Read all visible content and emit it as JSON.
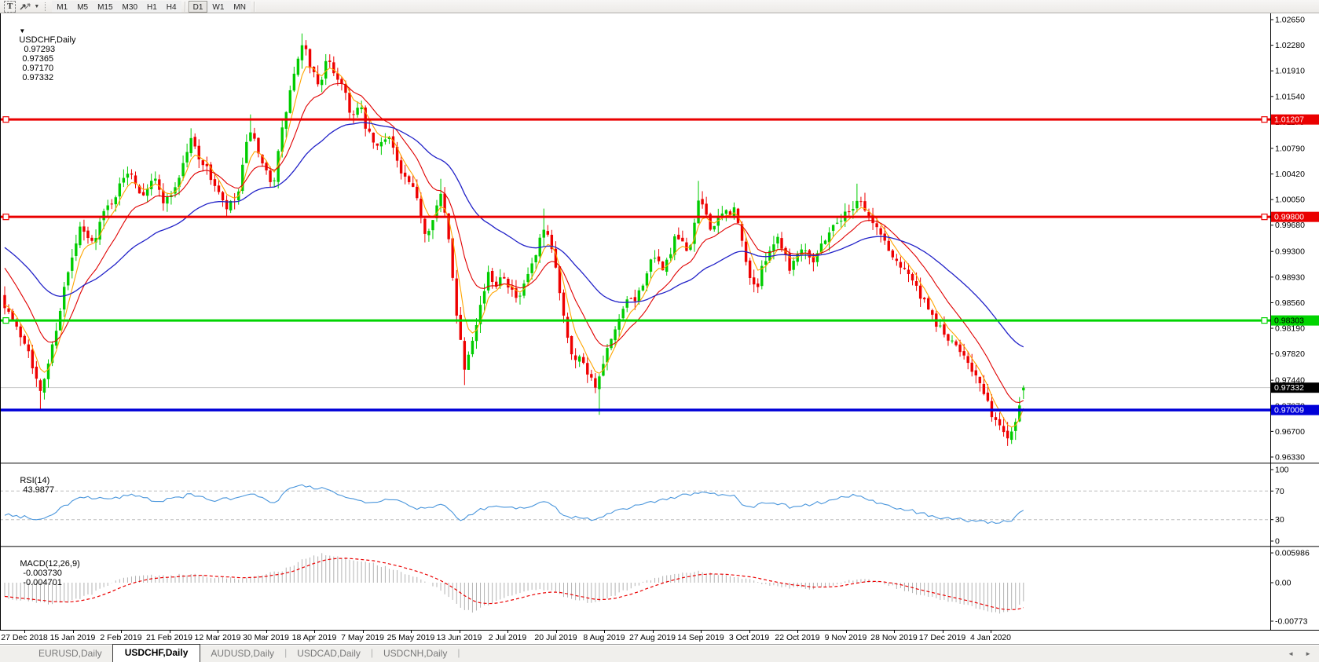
{
  "toolbar": {
    "text_tool_glyph": "T",
    "dropdown_caret": "▼",
    "timeframes": [
      {
        "label": "M1",
        "active": false
      },
      {
        "label": "M5",
        "active": false
      },
      {
        "label": "M15",
        "active": false
      },
      {
        "label": "M30",
        "active": false
      },
      {
        "label": "H1",
        "active": false
      },
      {
        "label": "H4",
        "active": false
      },
      {
        "label": "D1",
        "active": true
      },
      {
        "label": "W1",
        "active": false
      },
      {
        "label": "MN",
        "active": false
      }
    ]
  },
  "chart": {
    "title": {
      "collapse_arrow": "▼",
      "symbol": "USDCHF,Daily",
      "open": "0.97293",
      "high": "0.97365",
      "low": "0.97170",
      "close": "0.97332"
    },
    "y_axis": {
      "ticks": [
        "1.02650",
        "1.02280",
        "1.01910",
        "1.01540",
        "1.01170",
        "1.00790",
        "1.00420",
        "1.00050",
        "0.99680",
        "0.99300",
        "0.98930",
        "0.98560",
        "0.98190",
        "0.97820",
        "0.97440",
        "0.97070",
        "0.96700",
        "0.96330"
      ]
    },
    "x_axis": {
      "dates": [
        "27 Dec 2018",
        "15 Jan 2019",
        "2 Feb 2019",
        "21 Feb 2019",
        "12 Mar 2019",
        "30 Mar 2019",
        "18 Apr 2019",
        "7 May 2019",
        "25 May 2019",
        "13 Jun 2019",
        "2 Jul 2019",
        "20 Jul 2019",
        "8 Aug 2019",
        "27 Aug 2019",
        "14 Sep 2019",
        "3 Oct 2019",
        "22 Oct 2019",
        "9 Nov 2019",
        "28 Nov 2019",
        "17 Dec 2019",
        "4 Jan 2020"
      ]
    },
    "hlines": [
      {
        "label": "1.01207",
        "price": 1.01207,
        "color": "#ea0000",
        "text_color": "#ffffff",
        "thickness": 3,
        "handles": true
      },
      {
        "label": "0.99800",
        "price": 0.998,
        "color": "#ea0000",
        "text_color": "#ffffff",
        "thickness": 3,
        "handles": true
      },
      {
        "label": "0.98303",
        "price": 0.98303,
        "color": "#00d400",
        "text_color": "#000000",
        "thickness": 3,
        "handles": true
      },
      {
        "label": "0.97009",
        "price": 0.97009,
        "color": "#0000d8",
        "text_color": "#ffffff",
        "thickness": 3.5,
        "handles": false
      }
    ],
    "current_price": {
      "label": "0.97332",
      "price": 0.97332,
      "line_color": "#c6c6c6",
      "tag_bg": "#000000",
      "tag_text": "#ffffff"
    },
    "colors": {
      "up": "#00cc00",
      "down": "#ee0000",
      "ma_fast": "#ffa500",
      "ma_mid": "#e00000",
      "ma_slow": "#2222c8",
      "axis_text": "#000000"
    }
  },
  "rsi": {
    "name": "RSI(14)",
    "value": "43.9877",
    "scale": [
      "100",
      "70",
      "30",
      "0"
    ],
    "upper": 70,
    "lower": 30,
    "line_color": "#4a96dc",
    "level_color": "#bdbdbd"
  },
  "macd": {
    "name": "MACD(12,26,9)",
    "macd_value": "-0.003730",
    "signal_value": "-0.004701",
    "scale": [
      "0.005986",
      "0.00",
      "-0.00773"
    ],
    "hist_color": "#b2b2b2",
    "signal_color": "#ea0000"
  },
  "tabs": {
    "separator": "|",
    "scroll_left": "◄",
    "scroll_right": "►",
    "items": [
      {
        "label": "EURUSD,Daily",
        "active": false
      },
      {
        "label": "USDCHF,Daily",
        "active": true
      },
      {
        "label": "AUDUSD,Daily",
        "active": false
      },
      {
        "label": "USDCAD,Daily",
        "active": false
      },
      {
        "label": "USDCNH,Daily",
        "active": false
      }
    ]
  },
  "chart_data": {
    "type": "candlestick",
    "symbol": "USDCHF",
    "timeframe": "Daily",
    "bars": 258,
    "last_bar": {
      "open": 0.97293,
      "high": 0.97365,
      "low": 0.9717,
      "close": 0.97332
    },
    "key_levels": [
      1.01207,
      0.998,
      0.98303,
      0.97009
    ],
    "rsi_last": 43.9877,
    "macd_last": -0.00373,
    "signal_last": -0.004701,
    "price_path": [
      [
        6,
        0.9855
      ],
      [
        21,
        0.9818
      ],
      [
        36,
        0.9792
      ],
      [
        51,
        0.9722
      ],
      [
        67,
        0.9795
      ],
      [
        82,
        0.9878
      ],
      [
        102,
        0.9962
      ],
      [
        117,
        0.9942
      ],
      [
        132,
        0.9985
      ],
      [
        150,
        1.0018
      ],
      [
        165,
        1.0052
      ],
      [
        180,
        1.0012
      ],
      [
        195,
        1.0038
      ],
      [
        210,
        1.0
      ],
      [
        225,
        1.0028
      ],
      [
        243,
        1.0092
      ],
      [
        258,
        1.0058
      ],
      [
        272,
        1.003
      ],
      [
        287,
        0.999
      ],
      [
        302,
        1.0005
      ],
      [
        318,
        1.011
      ],
      [
        333,
        1.0052
      ],
      [
        348,
        1.003
      ],
      [
        362,
        1.0122
      ],
      [
        375,
        1.019
      ],
      [
        386,
        1.0228
      ],
      [
        396,
        1.0195
      ],
      [
        406,
        1.017
      ],
      [
        416,
        1.0205
      ],
      [
        428,
        1.0185
      ],
      [
        438,
        1.0168
      ],
      [
        448,
        1.0122
      ],
      [
        458,
        1.014
      ],
      [
        468,
        1.01
      ],
      [
        481,
        1.0078
      ],
      [
        495,
        1.0103
      ],
      [
        510,
        1.0042
      ],
      [
        522,
        1.0026
      ],
      [
        533,
        0.9998
      ],
      [
        542,
        0.9952
      ],
      [
        552,
        0.9986
      ],
      [
        562,
        1.0012
      ],
      [
        572,
        0.994
      ],
      [
        581,
        0.9845
      ],
      [
        591,
        0.9762
      ],
      [
        601,
        0.9806
      ],
      [
        611,
        0.985
      ],
      [
        621,
        0.9895
      ],
      [
        631,
        0.9884
      ],
      [
        641,
        0.99
      ],
      [
        651,
        0.9873
      ],
      [
        661,
        0.9856
      ],
      [
        671,
        0.9895
      ],
      [
        681,
        0.9918
      ],
      [
        691,
        0.996
      ],
      [
        701,
        0.994
      ],
      [
        711,
        0.9884
      ],
      [
        721,
        0.9816
      ],
      [
        731,
        0.9772
      ],
      [
        741,
        0.9778
      ],
      [
        751,
        0.9748
      ],
      [
        761,
        0.9735
      ],
      [
        771,
        0.9782
      ],
      [
        781,
        0.9806
      ],
      [
        791,
        0.984
      ],
      [
        801,
        0.986
      ],
      [
        811,
        0.9862
      ],
      [
        821,
        0.9895
      ],
      [
        831,
        0.9918
      ],
      [
        846,
        0.9906
      ],
      [
        861,
        0.9952
      ],
      [
        876,
        0.9928
      ],
      [
        891,
        1.0008
      ],
      [
        906,
        0.9962
      ],
      [
        921,
        0.9985
      ],
      [
        936,
        0.999
      ],
      [
        951,
        0.9906
      ],
      [
        963,
        0.9874
      ],
      [
        976,
        0.9928
      ],
      [
        991,
        0.9952
      ],
      [
        1006,
        0.9906
      ],
      [
        1021,
        0.994
      ],
      [
        1036,
        0.9918
      ],
      [
        1051,
        0.9952
      ],
      [
        1066,
        0.9975
      ],
      [
        1081,
        0.9988
      ],
      [
        1093,
        1.001
      ],
      [
        1108,
        0.9975
      ],
      [
        1123,
        0.9952
      ],
      [
        1138,
        0.9918
      ],
      [
        1153,
        0.9907
      ],
      [
        1168,
        0.9873
      ],
      [
        1183,
        0.984
      ],
      [
        1198,
        0.9817
      ],
      [
        1213,
        0.9794
      ],
      [
        1228,
        0.9783
      ],
      [
        1243,
        0.9748
      ],
      [
        1258,
        0.9706
      ],
      [
        1272,
        0.9676
      ],
      [
        1285,
        0.9663
      ],
      [
        1295,
        0.9695
      ],
      [
        1303,
        0.9733
      ]
    ],
    "forced_highs": [
      [
        243,
        1.0108
      ],
      [
        318,
        1.0128
      ],
      [
        386,
        1.0245
      ],
      [
        562,
        1.0035
      ],
      [
        691,
        0.9992
      ],
      [
        891,
        1.0032
      ],
      [
        1093,
        1.0028
      ]
    ],
    "forced_lows": [
      [
        51,
        0.97
      ],
      [
        591,
        0.9737
      ],
      [
        761,
        0.9694
      ],
      [
        1285,
        0.9649
      ]
    ],
    "rsi_path": [
      [
        6,
        38
      ],
      [
        51,
        30
      ],
      [
        105,
        62
      ],
      [
        150,
        60
      ],
      [
        165,
        66
      ],
      [
        200,
        55
      ],
      [
        243,
        65
      ],
      [
        272,
        57
      ],
      [
        302,
        60
      ],
      [
        318,
        67
      ],
      [
        348,
        52
      ],
      [
        365,
        70
      ],
      [
        386,
        79
      ],
      [
        400,
        72
      ],
      [
        416,
        75
      ],
      [
        440,
        60
      ],
      [
        470,
        55
      ],
      [
        500,
        60
      ],
      [
        533,
        45
      ],
      [
        562,
        52
      ],
      [
        586,
        28
      ],
      [
        611,
        45
      ],
      [
        641,
        50
      ],
      [
        666,
        45
      ],
      [
        691,
        58
      ],
      [
        721,
        35
      ],
      [
        756,
        30
      ],
      [
        791,
        45
      ],
      [
        831,
        55
      ],
      [
        861,
        62
      ],
      [
        891,
        68
      ],
      [
        936,
        64
      ],
      [
        951,
        45
      ],
      [
        976,
        55
      ],
      [
        1006,
        48
      ],
      [
        1036,
        52
      ],
      [
        1066,
        60
      ],
      [
        1093,
        65
      ],
      [
        1123,
        50
      ],
      [
        1160,
        42
      ],
      [
        1200,
        32
      ],
      [
        1240,
        28
      ],
      [
        1272,
        24
      ],
      [
        1290,
        31
      ],
      [
        1303,
        44
      ]
    ],
    "macd_path": [
      [
        6,
        -0.003
      ],
      [
        30,
        -0.0035
      ],
      [
        60,
        -0.0042
      ],
      [
        90,
        -0.0038
      ],
      [
        120,
        -0.002
      ],
      [
        150,
        0.0008
      ],
      [
        180,
        0.0015
      ],
      [
        210,
        0.0013
      ],
      [
        243,
        0.0018
      ],
      [
        272,
        0.001
      ],
      [
        302,
        0.0008
      ],
      [
        333,
        0.0015
      ],
      [
        362,
        0.0026
      ],
      [
        390,
        0.005
      ],
      [
        412,
        0.0058
      ],
      [
        440,
        0.005
      ],
      [
        470,
        0.004
      ],
      [
        500,
        0.0028
      ],
      [
        533,
        0.0008
      ],
      [
        562,
        -0.0015
      ],
      [
        586,
        -0.005
      ],
      [
        601,
        -0.0058
      ],
      [
        621,
        -0.0045
      ],
      [
        651,
        -0.0025
      ],
      [
        681,
        -0.0012
      ],
      [
        701,
        -0.0015
      ],
      [
        721,
        -0.003
      ],
      [
        751,
        -0.004
      ],
      [
        776,
        -0.003
      ],
      [
        801,
        -0.0012
      ],
      [
        831,
        0.0008
      ],
      [
        861,
        0.0018
      ],
      [
        891,
        0.0022
      ],
      [
        921,
        0.0015
      ],
      [
        951,
        0.0008
      ],
      [
        976,
        -0.0005
      ],
      [
        1001,
        -0.001
      ],
      [
        1031,
        -0.0012
      ],
      [
        1061,
        -0.0005
      ],
      [
        1081,
        0.0005
      ],
      [
        1101,
        0.0008
      ],
      [
        1131,
        -0.0005
      ],
      [
        1161,
        -0.002
      ],
      [
        1200,
        -0.0035
      ],
      [
        1240,
        -0.005
      ],
      [
        1272,
        -0.0062
      ],
      [
        1290,
        -0.0055
      ],
      [
        1303,
        -0.0037
      ]
    ]
  }
}
